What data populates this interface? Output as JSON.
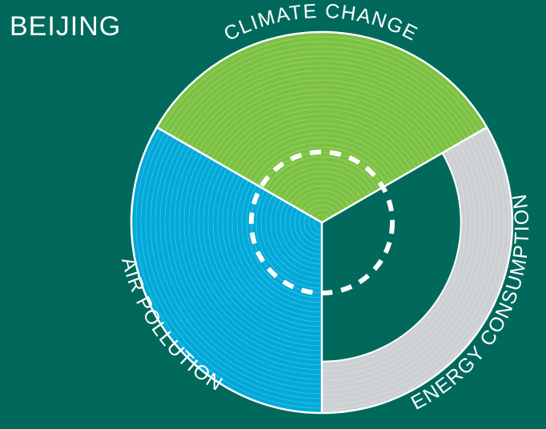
{
  "title": "BEIJING",
  "colors": {
    "background": "#00695c",
    "climate_change": "#7cc242",
    "air_pollution": "#00a9d9",
    "energy_consumption_fill": "#00695c",
    "energy_consumption_track": "#cdd0d2",
    "ring_lines": "#ffffff"
  },
  "chart_data": {
    "type": "radial-bar",
    "title": "BEIJING",
    "segments": [
      {
        "name": "CLIMATE CHANGE",
        "value": 1.0,
        "color": "#7cc242"
      },
      {
        "name": "ENERGY CONSUMPTION",
        "value": 0.73,
        "color": "#00695c",
        "track_color": "#cdd0d2"
      },
      {
        "name": "AIR POLLUTION",
        "value": 1.0,
        "color": "#00a9d9"
      }
    ],
    "reference_ring": {
      "style": "dashed",
      "color": "#ffffff",
      "value": 0.37
    }
  }
}
